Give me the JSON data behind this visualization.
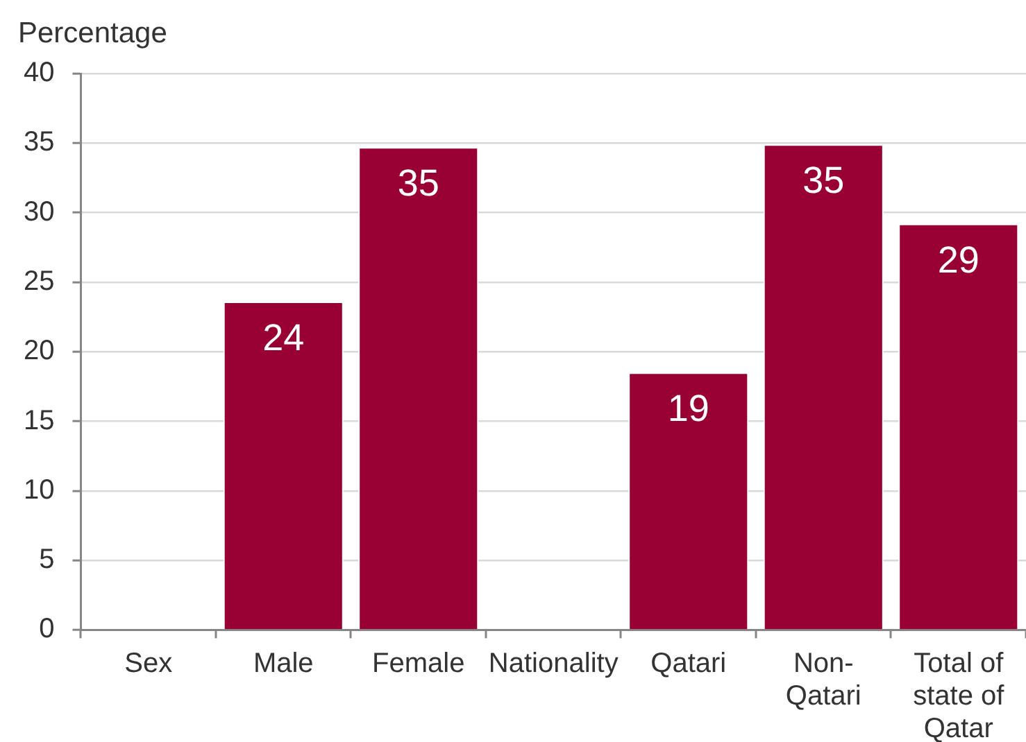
{
  "chart_data": {
    "type": "bar",
    "ylabel": "Percentage",
    "categories": [
      "Sex",
      "Male",
      "Female",
      "Nationality",
      "Qatari",
      "Non-Qatari",
      "Total of state of Qatar"
    ],
    "values": [
      null,
      23.6,
      34.7,
      null,
      18.5,
      34.9,
      29.2
    ],
    "value_labels": [
      null,
      "24",
      "35",
      null,
      "19",
      "35",
      "29"
    ],
    "color": "#990033",
    "ylim": [
      0,
      40
    ],
    "yticks": [
      0,
      5,
      10,
      15,
      20,
      25,
      30,
      35,
      40
    ],
    "grid": "y"
  }
}
